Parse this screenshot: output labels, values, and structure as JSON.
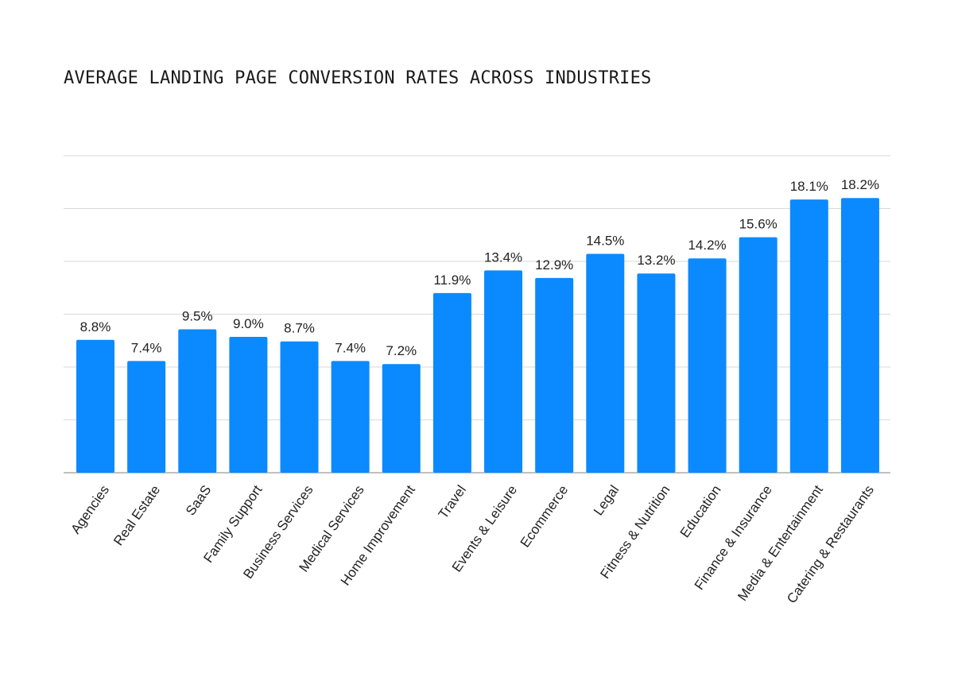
{
  "chart_data": {
    "type": "bar",
    "title": "AVERAGE LANDING PAGE CONVERSION RATES ACROSS INDUSTRIES",
    "categories": [
      "Agencies",
      "Real Estate",
      "SaaS",
      "Family Support",
      "Business Services",
      "Medical Services",
      "Home Improvement",
      "Travel",
      "Events & Leisure",
      "Ecommerce",
      "Legal",
      "Fitness & Nutrition",
      "Education",
      "Finance & Insurance",
      "Media & Entertainment",
      "Catering & Restaurants"
    ],
    "values": [
      8.8,
      7.4,
      9.5,
      9.0,
      8.7,
      7.4,
      7.2,
      11.9,
      13.4,
      12.9,
      14.5,
      13.2,
      14.2,
      15.6,
      18.1,
      18.2
    ],
    "value_labels": [
      "8.8%",
      "7.4%",
      "9.5%",
      "9.0%",
      "8.7%",
      "7.4%",
      "7.2%",
      "11.9%",
      "13.4%",
      "12.9%",
      "14.5%",
      "13.2%",
      "14.2%",
      "15.6%",
      "18.1%",
      "18.2%"
    ],
    "ylim": [
      0,
      21
    ],
    "ygrid_step": 3.5,
    "grid": true,
    "legend": "none",
    "bar_color": "#0b8aff"
  }
}
